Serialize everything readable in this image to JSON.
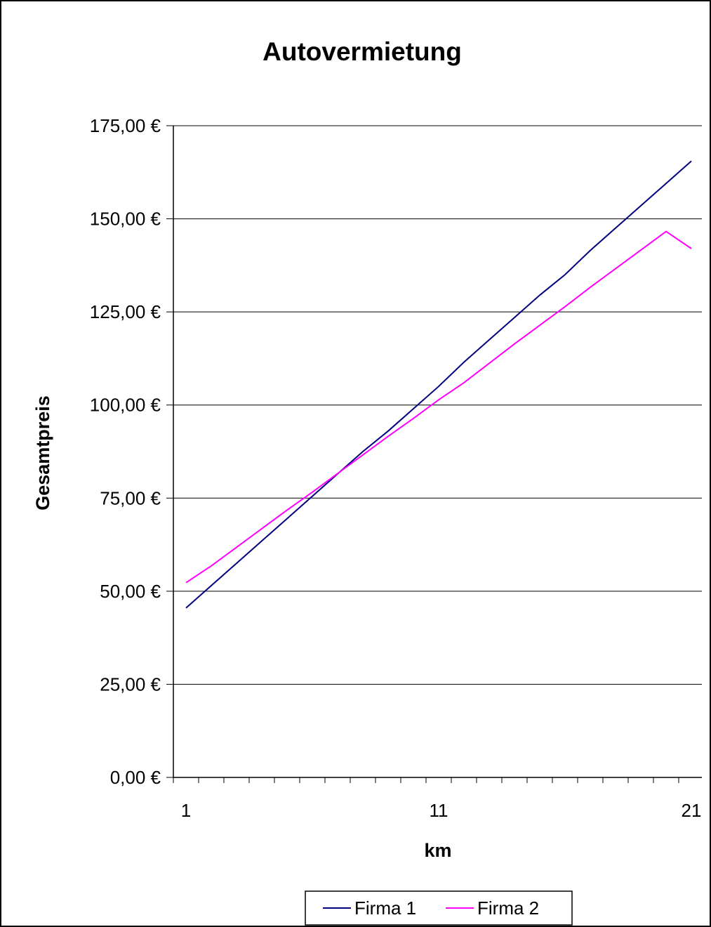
{
  "chart_data": {
    "type": "line",
    "title": "Autovermietung",
    "xlabel": "km",
    "ylabel": "Gesamtpreis",
    "x": [
      1,
      2,
      3,
      4,
      5,
      6,
      7,
      8,
      9,
      10,
      11,
      12,
      13,
      14,
      15,
      16,
      17,
      18,
      19,
      20,
      21
    ],
    "x_ticks": [
      "1",
      "11",
      "21"
    ],
    "xlim": [
      1,
      21
    ],
    "ylim": [
      0,
      175
    ],
    "y_ticks": [
      0,
      25,
      50,
      75,
      100,
      125,
      150,
      175
    ],
    "y_tick_labels": [
      "0,00 €",
      "25,00 €",
      "50,00 €",
      "75,00 €",
      "100,00 €",
      "125,00 €",
      "150,00 €",
      "175,00 €"
    ],
    "grid": "horizontal",
    "legend_position": "bottom",
    "series": [
      {
        "name": "Firma 1",
        "color": "#000080",
        "values": [
          45.5,
          51.5,
          57.5,
          63.5,
          69.5,
          75.5,
          81.5,
          87.5,
          93,
          99,
          105,
          111.5,
          117.5,
          123.5,
          129.5,
          135,
          141.5,
          147.5,
          153.5,
          159.5,
          165.5
        ]
      },
      {
        "name": "Firma 2",
        "color": "#ff00ff",
        "values": [
          52.3,
          56.8,
          61.8,
          66.8,
          71.8,
          76.6,
          81.6,
          86.6,
          91.6,
          96.4,
          101.4,
          106,
          111.2,
          116.4,
          121.4,
          126.4,
          131.6,
          136.6,
          141.6,
          146.6,
          142
        ]
      }
    ]
  }
}
